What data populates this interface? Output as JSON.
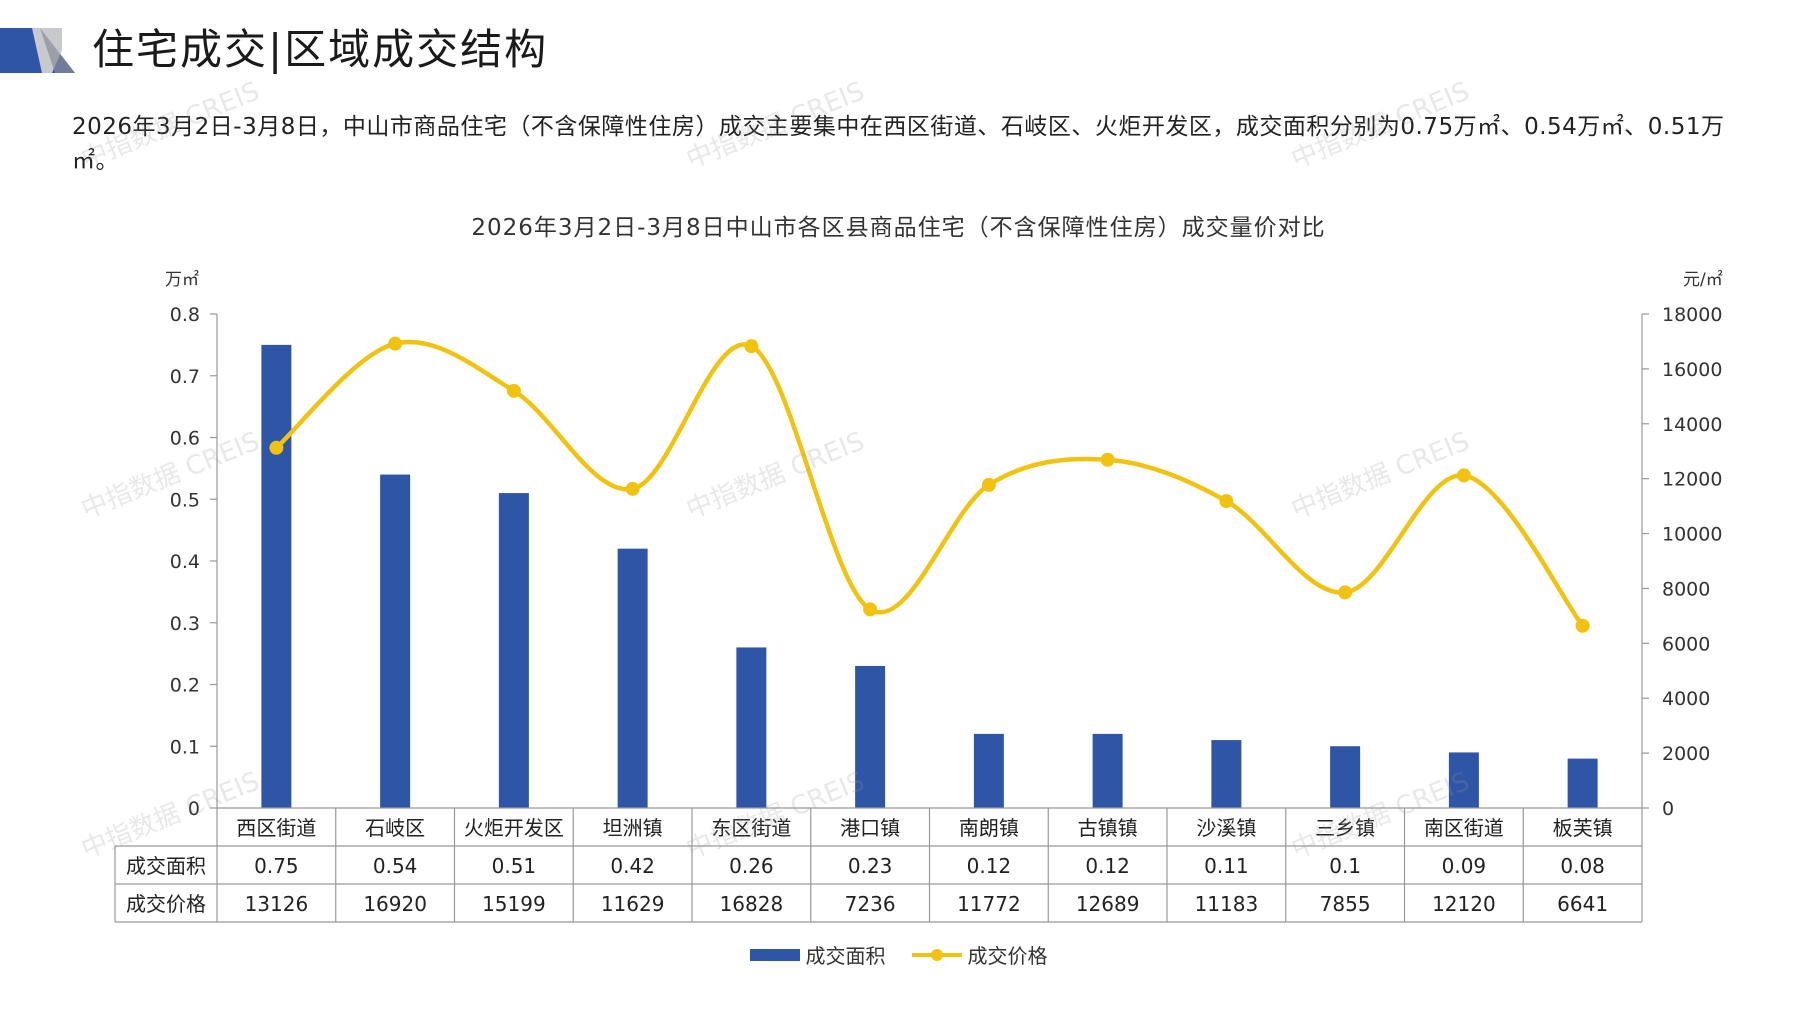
{
  "header": {
    "title": "住宅成交|区域成交结构"
  },
  "intro_text": "2026年3月2日-3月8日，中山市商品住宅（不含保障性住房）成交主要集中在西区街道、石岐区、火炬开发区，成交面积分别为0.75万㎡、0.54万㎡、0.51万㎡。",
  "watermark_text": "中指数据 CREIS",
  "chart_data": {
    "type": "bar",
    "title": "2026年3月2日-3月8日中山市各区县商品住宅（不含保障性住房）成交量价对比",
    "categories": [
      "西区街道",
      "石岐区",
      "火炬开发区",
      "坦洲镇",
      "东区街道",
      "港口镇",
      "南朗镇",
      "古镇镇",
      "沙溪镇",
      "三乡镇",
      "南区街道",
      "板芙镇"
    ],
    "series": [
      {
        "name": "成交面积",
        "type": "bar",
        "axis": "left",
        "color": "#2f56a6",
        "values": [
          0.75,
          0.54,
          0.51,
          0.42,
          0.26,
          0.23,
          0.12,
          0.12,
          0.11,
          0.1,
          0.09,
          0.08
        ],
        "display_values": [
          "0.75",
          "0.54",
          "0.51",
          "0.42",
          "0.26",
          "0.23",
          "0.12",
          "0.12",
          "0.11",
          "0.1",
          "0.09",
          "0.08"
        ]
      },
      {
        "name": "成交价格",
        "type": "line",
        "axis": "right",
        "smooth": true,
        "color": "#f2c211",
        "values": [
          13126,
          16920,
          15199,
          11629,
          16828,
          7236,
          11772,
          12689,
          11183,
          7855,
          12120,
          6641
        ]
      }
    ],
    "y_left": {
      "unit": "万㎡",
      "range": [
        0,
        0.8
      ],
      "ticks": [
        "0",
        "0.1",
        "0.2",
        "0.3",
        "0.4",
        "0.5",
        "0.6",
        "0.7",
        "0.8"
      ]
    },
    "y_right": {
      "unit": "元/㎡",
      "range": [
        0,
        18000
      ],
      "ticks": [
        "0",
        "2000",
        "4000",
        "6000",
        "8000",
        "10000",
        "12000",
        "14000",
        "16000",
        "18000"
      ]
    },
    "data_table": true,
    "legend_position": "bottom",
    "grid": false
  }
}
